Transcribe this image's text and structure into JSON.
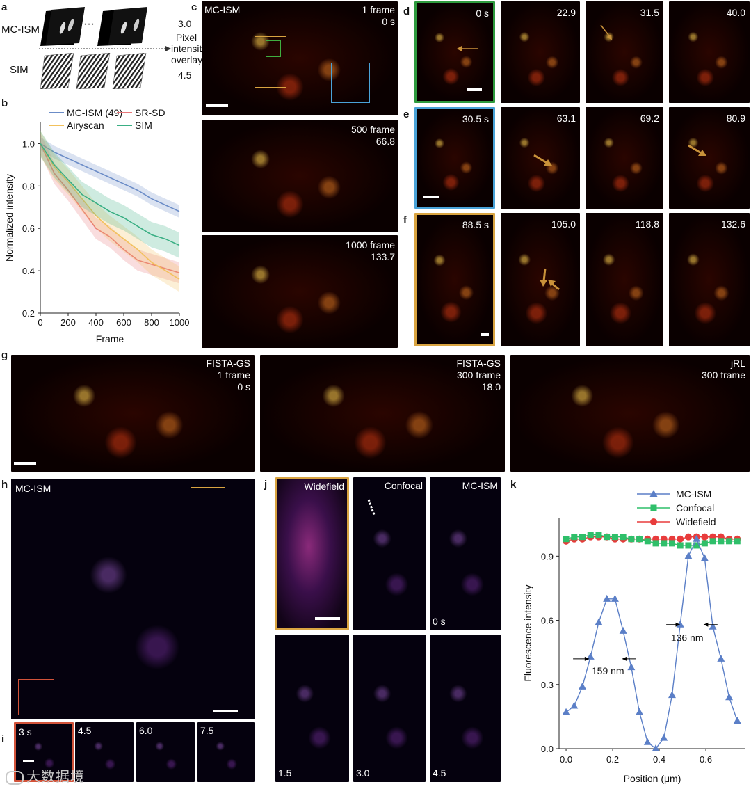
{
  "panels": {
    "a": {
      "label": "a",
      "rows": [
        "MC-ISM",
        "SIM"
      ],
      "ellipsis": "···",
      "value_top": "3.0",
      "value_bottom": "4.5",
      "overlay_text": [
        "Pixel",
        "intensity",
        "overlay"
      ]
    },
    "b": {
      "label": "b"
    },
    "c": {
      "label": "c",
      "method": "MC-ISM",
      "frames": [
        {
          "frame": "1 frame",
          "time": "0 s"
        },
        {
          "frame": "500 frame",
          "time": "66.8"
        },
        {
          "frame": "1000 frame",
          "time": "133.7"
        }
      ]
    },
    "d": {
      "label": "d",
      "times": [
        "0 s",
        "22.9",
        "31.5",
        "40.0"
      ]
    },
    "e": {
      "label": "e",
      "times": [
        "30.5 s",
        "63.1",
        "69.2",
        "80.9"
      ]
    },
    "f": {
      "label": "f",
      "times": [
        "88.5 s",
        "105.0",
        "118.8",
        "132.6"
      ]
    },
    "g": {
      "label": "g",
      "tiles": [
        {
          "method": "FISTA-GS",
          "frame": "1 frame",
          "time": "0 s"
        },
        {
          "method": "FISTA-GS",
          "frame": "300 frame",
          "time": "18.0"
        },
        {
          "method": "jRL",
          "frame": "300 frame",
          "time": ""
        }
      ]
    },
    "h": {
      "label": "h",
      "method": "MC-ISM"
    },
    "i": {
      "label": "i",
      "times": [
        "3 s",
        "4.5",
        "6.0",
        "7.5"
      ]
    },
    "j": {
      "label": "j",
      "top": [
        "Widefield",
        "Confocal",
        "MC-ISM"
      ],
      "top_time": "0 s",
      "bottom_times": [
        "1.5",
        "3.0",
        "4.5"
      ]
    },
    "k": {
      "label": "k",
      "annot_left": "159 nm",
      "annot_right": "136 nm"
    }
  },
  "watermark": "大数据境",
  "chart_data": [
    {
      "type": "line",
      "panel": "b",
      "xlabel": "Frame",
      "ylabel": "Normalized  intensity",
      "xlim": [
        0,
        1000
      ],
      "ylim": [
        0.2,
        1.1
      ],
      "xticks": [
        0,
        200,
        400,
        600,
        800,
        1000
      ],
      "yticks": [
        0.2,
        0.4,
        0.6,
        0.8,
        1.0
      ],
      "legend_placement": "top",
      "x": [
        0,
        100,
        200,
        300,
        400,
        500,
        600,
        700,
        800,
        900,
        1000
      ],
      "series": [
        {
          "name": "MC-ISM (49)",
          "color": "#6b8cc7",
          "values": [
            1.0,
            0.96,
            0.93,
            0.9,
            0.87,
            0.84,
            0.81,
            0.78,
            0.74,
            0.71,
            0.68
          ],
          "band": 0.03
        },
        {
          "name": "SR-SD",
          "color": "#e8777a",
          "values": [
            1.0,
            0.86,
            0.78,
            0.69,
            0.6,
            0.56,
            0.5,
            0.45,
            0.43,
            0.41,
            0.39
          ],
          "band": 0.05
        },
        {
          "name": "Airyscan",
          "color": "#f2c15c",
          "values": [
            1.0,
            0.89,
            0.82,
            0.74,
            0.66,
            0.6,
            0.55,
            0.5,
            0.44,
            0.4,
            0.36
          ],
          "band": 0.06
        },
        {
          "name": "SIM",
          "color": "#3aaf84",
          "values": [
            1.0,
            0.9,
            0.83,
            0.76,
            0.72,
            0.68,
            0.65,
            0.61,
            0.57,
            0.55,
            0.52
          ],
          "band": 0.06
        }
      ]
    },
    {
      "type": "line",
      "panel": "k",
      "xlabel": "Position (μm)",
      "ylabel": "Fluorescence intensity",
      "xlim": [
        -0.03,
        0.77
      ],
      "ylim": [
        0.0,
        1.08
      ],
      "xticks": [
        0.0,
        0.2,
        0.4,
        0.6
      ],
      "yticks": [
        0.0,
        0.3,
        0.6,
        0.9
      ],
      "legend_placement": "top",
      "x": [
        0.0,
        0.035,
        0.07,
        0.105,
        0.14,
        0.175,
        0.21,
        0.245,
        0.28,
        0.315,
        0.35,
        0.385,
        0.42,
        0.455,
        0.49,
        0.525,
        0.56,
        0.595,
        0.63,
        0.665,
        0.7,
        0.735
      ],
      "series": [
        {
          "name": "MC-ISM",
          "color": "#5b7fc7",
          "marker": "triangle",
          "values": [
            0.17,
            0.2,
            0.29,
            0.43,
            0.59,
            0.7,
            0.7,
            0.55,
            0.38,
            0.17,
            0.03,
            0.0,
            0.05,
            0.25,
            0.58,
            0.9,
            0.98,
            0.89,
            0.57,
            0.42,
            0.24,
            0.13
          ]
        },
        {
          "name": "Confocal",
          "color": "#2fbf6a",
          "marker": "square",
          "values": [
            0.98,
            0.99,
            0.99,
            1.0,
            1.0,
            0.99,
            0.99,
            0.99,
            0.98,
            0.98,
            0.97,
            0.96,
            0.96,
            0.96,
            0.95,
            0.95,
            0.95,
            0.96,
            0.97,
            0.97,
            0.97,
            0.97
          ]
        },
        {
          "name": "Widefield",
          "color": "#e83c3c",
          "marker": "circle",
          "values": [
            0.97,
            0.98,
            0.98,
            0.99,
            0.99,
            0.99,
            0.98,
            0.98,
            0.98,
            0.98,
            0.98,
            0.98,
            0.98,
            0.98,
            0.98,
            0.99,
            0.99,
            0.99,
            0.99,
            0.99,
            0.98,
            0.98
          ]
        }
      ]
    }
  ]
}
